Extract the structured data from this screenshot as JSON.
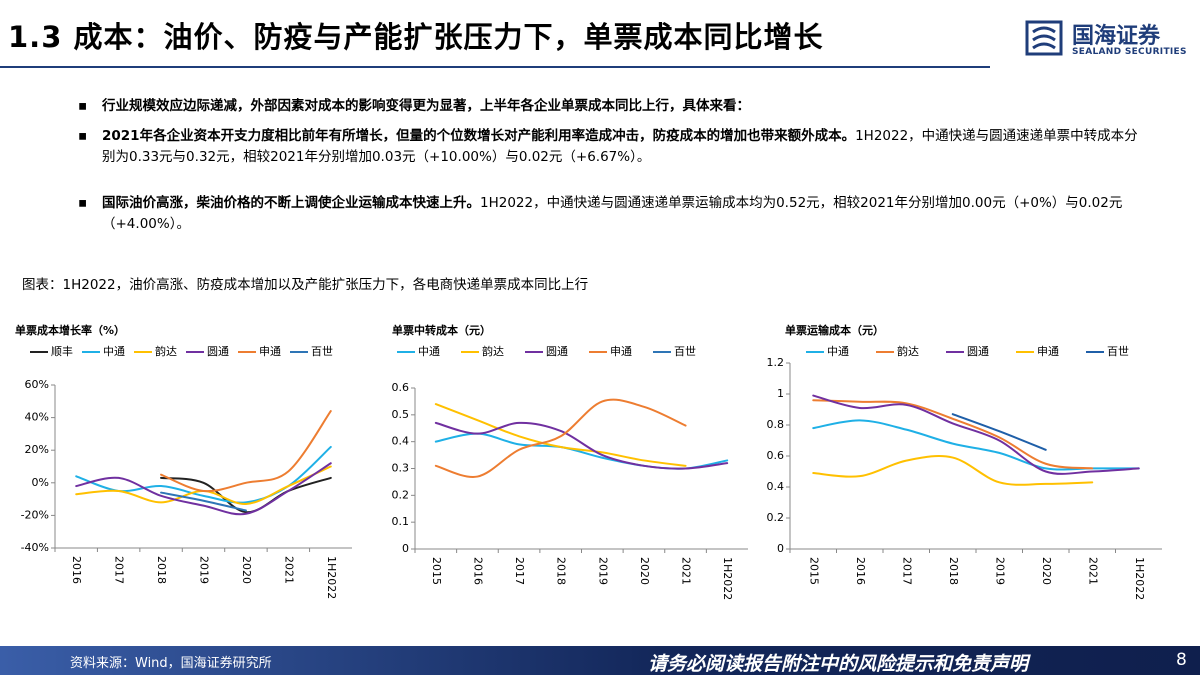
{
  "header": {
    "title": "1.3 成本：油价、防疫与产能扩张压力下，单票成本同比增长",
    "logo": "国海证券",
    "logo_en": "SEALAND SECURITIES"
  },
  "bullets": [
    {
      "bold": "行业规模效应边际递减，外部因素对成本的影响变得更为显著，上半年各企业单票成本同比上行，具体来看："
    },
    {
      "bold": "2021年各企业资本开支力度相比前年有所增长，但量的个位数增长对产能利用率造成冲击，防疫成本的增加也带来额外成本。",
      "text": "1H2022，中通快递与圆通速递单票中转成本分别为0.33元与0.32元，相较2021年分别增加0.03元（+10.00%）与0.02元（+6.67%）。"
    },
    {
      "bold": "国际油价高涨，柴油价格的不断上调使企业运输成本快速上升。",
      "text": "1H2022，中通快递与圆通速递单票运输成本均为0.52元，相较2021年分别增加0.00元（+0%）与0.02元（+4.00%）。"
    }
  ],
  "caption": "图表：1H2022，油价高涨、防疫成本增加以及产能扩张压力下，各电商快递单票成本同比上行",
  "chart_data": [
    {
      "type": "line",
      "title": "单票成本增长率（%）",
      "categories": [
        "2016",
        "2017",
        "2018",
        "2019",
        "2020",
        "2021",
        "1H2022"
      ],
      "ylim": [
        -40,
        60
      ],
      "yticks": [
        {
          "value": -40,
          "label": "-40%"
        },
        {
          "value": -20,
          "label": "-20%"
        },
        {
          "value": 0,
          "label": "0%"
        },
        {
          "value": 20,
          "label": "20%"
        },
        {
          "value": 40,
          "label": "40%"
        },
        {
          "value": 60,
          "label": "60%"
        }
      ],
      "series": [
        {
          "name": "顺丰",
          "color": "#222222",
          "values": [
            null,
            null,
            3,
            0,
            -18,
            -5,
            3
          ]
        },
        {
          "name": "中通",
          "color": "#1fb0e6",
          "values": [
            4,
            -5,
            -2,
            -8,
            -12,
            -2,
            22
          ]
        },
        {
          "name": "韵达",
          "color": "#ffc000",
          "values": [
            -7,
            -5,
            -12,
            -5,
            -13,
            -2,
            10
          ]
        },
        {
          "name": "圆通",
          "color": "#7030a0",
          "values": [
            -2,
            3,
            -8,
            -14,
            -19,
            -5,
            12
          ]
        },
        {
          "name": "申通",
          "color": "#ed7d31",
          "values": [
            null,
            null,
            5,
            -5,
            0,
            7,
            44
          ]
        },
        {
          "name": "百世",
          "color": "#2e75b6",
          "values": [
            null,
            null,
            -6,
            -11,
            -17,
            null,
            null
          ]
        }
      ]
    },
    {
      "type": "line",
      "title": "单票中转成本（元）",
      "categories": [
        "2015",
        "2016",
        "2017",
        "2018",
        "2019",
        "2020",
        "2021",
        "1H2022"
      ],
      "ylim": [
        0,
        0.6
      ],
      "yticks": [
        0,
        0.1,
        0.2,
        0.3,
        0.4,
        0.5,
        0.6
      ],
      "series": [
        {
          "name": "中通",
          "color": "#1fb0e6",
          "values": [
            0.4,
            0.43,
            0.39,
            0.38,
            0.34,
            0.31,
            0.3,
            0.33
          ]
        },
        {
          "name": "韵达",
          "color": "#ffc000",
          "values": [
            0.54,
            0.48,
            0.42,
            0.38,
            0.36,
            0.33,
            0.31,
            null
          ]
        },
        {
          "name": "圆通",
          "color": "#7030a0",
          "values": [
            0.47,
            0.43,
            0.47,
            0.44,
            0.35,
            0.31,
            0.3,
            0.32
          ]
        },
        {
          "name": "申通",
          "color": "#ed7d31",
          "values": [
            0.31,
            0.27,
            0.37,
            0.42,
            0.55,
            0.53,
            0.46,
            null
          ]
        },
        {
          "name": "百世",
          "color": "#2e75b6",
          "values": [
            null,
            null,
            null,
            null,
            null,
            null,
            null,
            null
          ]
        }
      ]
    },
    {
      "type": "line",
      "title": "单票运输成本（元）",
      "categories": [
        "2015",
        "2016",
        "2017",
        "2018",
        "2019",
        "2020",
        "2021",
        "1H2022"
      ],
      "ylim": [
        0,
        1.2
      ],
      "yticks": [
        0,
        0.2,
        0.4,
        0.6,
        0.8,
        1,
        1.2
      ],
      "series": [
        {
          "name": "中通",
          "color": "#1fb0e6",
          "values": [
            0.78,
            0.83,
            0.77,
            0.68,
            0.62,
            0.52,
            0.52,
            0.52
          ]
        },
        {
          "name": "韵达",
          "color": "#ed7d31",
          "values": [
            0.96,
            0.95,
            0.94,
            0.84,
            0.72,
            0.55,
            0.52,
            null
          ]
        },
        {
          "name": "圆通",
          "color": "#7030a0",
          "values": [
            0.99,
            0.91,
            0.93,
            0.81,
            0.7,
            0.5,
            0.5,
            0.52
          ]
        },
        {
          "name": "申通",
          "color": "#ffc000",
          "values": [
            0.49,
            0.47,
            0.57,
            0.59,
            0.43,
            0.42,
            0.43,
            null
          ]
        },
        {
          "name": "百世",
          "color": "#1f5fa8",
          "values": [
            null,
            null,
            null,
            0.87,
            0.76,
            0.64,
            null,
            null
          ]
        }
      ]
    }
  ],
  "footer": {
    "source": "资料来源：Wind，国海证券研究所",
    "disclaimer": "请务必阅读报告附注中的风险提示和免责声明",
    "page": "8"
  }
}
